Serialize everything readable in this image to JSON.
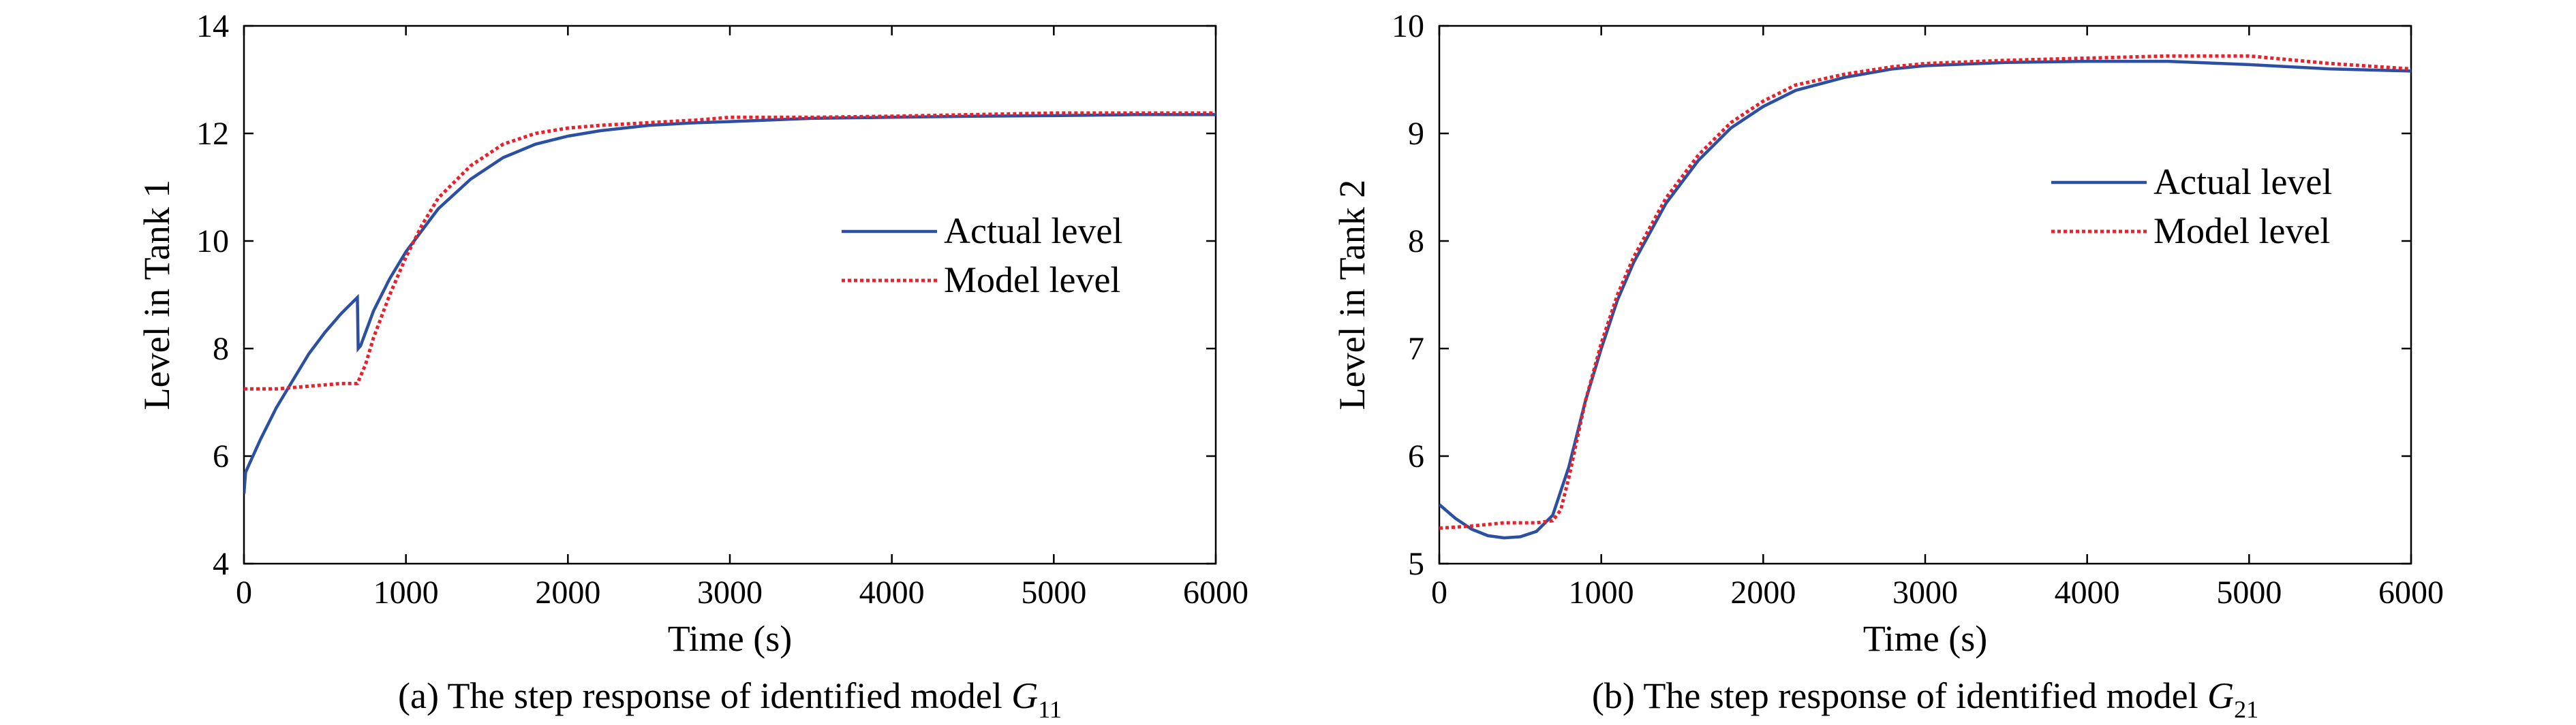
{
  "chart_data": [
    {
      "type": "line",
      "caption": {
        "prefix": "(a) The step response of identified model ",
        "symbol": "G",
        "subscript": "11"
      },
      "xlabel": "Time (s)",
      "ylabel": "Level in Tank 1",
      "xlim": [
        0,
        6000
      ],
      "ylim": [
        4,
        14
      ],
      "xticks": [
        0,
        1000,
        2000,
        3000,
        4000,
        5000,
        6000
      ],
      "yticks": [
        4,
        6,
        8,
        10,
        12,
        14
      ],
      "grid": false,
      "legend_position": "right-middle",
      "series": [
        {
          "name": "Actual level",
          "color": "#2b4fa2",
          "style": "solid",
          "x": [
            0,
            10,
            100,
            200,
            300,
            400,
            500,
            600,
            700,
            705,
            720,
            800,
            900,
            1000,
            1200,
            1400,
            1600,
            1800,
            2000,
            2200,
            2500,
            2800,
            3000,
            3500,
            4000,
            4500,
            5000,
            5500,
            6000
          ],
          "y": [
            5.3,
            5.7,
            6.3,
            6.9,
            7.4,
            7.9,
            8.3,
            8.65,
            8.95,
            8.0,
            8.05,
            8.7,
            9.3,
            9.8,
            10.6,
            11.15,
            11.55,
            11.8,
            11.95,
            12.05,
            12.15,
            12.2,
            12.22,
            12.28,
            12.3,
            12.32,
            12.33,
            12.35,
            12.35
          ]
        },
        {
          "name": "Model level",
          "color": "#e8212d",
          "style": "dotted",
          "x": [
            0,
            200,
            400,
            600,
            700,
            750,
            800,
            900,
            1000,
            1100,
            1200,
            1400,
            1600,
            1800,
            2000,
            2200,
            2500,
            2800,
            3000,
            3500,
            4000,
            4500,
            5000,
            5500,
            6000
          ],
          "y": [
            7.25,
            7.25,
            7.3,
            7.35,
            7.35,
            7.7,
            8.2,
            9.0,
            9.7,
            10.3,
            10.8,
            11.4,
            11.8,
            12.0,
            12.1,
            12.15,
            12.2,
            12.25,
            12.3,
            12.3,
            12.32,
            12.35,
            12.38,
            12.38,
            12.38
          ]
        }
      ]
    },
    {
      "type": "line",
      "caption": {
        "prefix": "(b) The step response of identified model ",
        "symbol": "G",
        "subscript": "21"
      },
      "xlabel": "Time (s)",
      "ylabel": "Level in Tank 2",
      "xlim": [
        0,
        6000
      ],
      "ylim": [
        5,
        10
      ],
      "xticks": [
        0,
        1000,
        2000,
        3000,
        4000,
        5000,
        6000
      ],
      "yticks": [
        5,
        6,
        7,
        8,
        9,
        10
      ],
      "grid": false,
      "legend_position": "right-upper",
      "series": [
        {
          "name": "Actual level",
          "color": "#2b4fa2",
          "style": "solid",
          "x": [
            0,
            100,
            200,
            300,
            400,
            500,
            600,
            700,
            800,
            900,
            1000,
            1100,
            1200,
            1400,
            1600,
            1800,
            2000,
            2200,
            2500,
            2800,
            3000,
            3500,
            4000,
            4500,
            5000,
            5500,
            6000
          ],
          "y": [
            5.55,
            5.42,
            5.32,
            5.26,
            5.24,
            5.25,
            5.3,
            5.45,
            5.9,
            6.5,
            7.0,
            7.45,
            7.8,
            8.35,
            8.75,
            9.05,
            9.25,
            9.4,
            9.52,
            9.6,
            9.63,
            9.66,
            9.67,
            9.67,
            9.64,
            9.6,
            9.58
          ]
        },
        {
          "name": "Model level",
          "color": "#e8212d",
          "style": "dotted",
          "x": [
            0,
            200,
            400,
            600,
            700,
            750,
            800,
            900,
            1000,
            1100,
            1200,
            1400,
            1600,
            1800,
            2000,
            2200,
            2500,
            2800,
            3000,
            3500,
            4000,
            4500,
            5000,
            5500,
            6000
          ],
          "y": [
            5.33,
            5.35,
            5.38,
            5.38,
            5.4,
            5.5,
            5.8,
            6.5,
            7.05,
            7.5,
            7.85,
            8.4,
            8.8,
            9.1,
            9.3,
            9.45,
            9.55,
            9.62,
            9.65,
            9.68,
            9.7,
            9.72,
            9.72,
            9.65,
            9.6
          ]
        }
      ]
    }
  ]
}
